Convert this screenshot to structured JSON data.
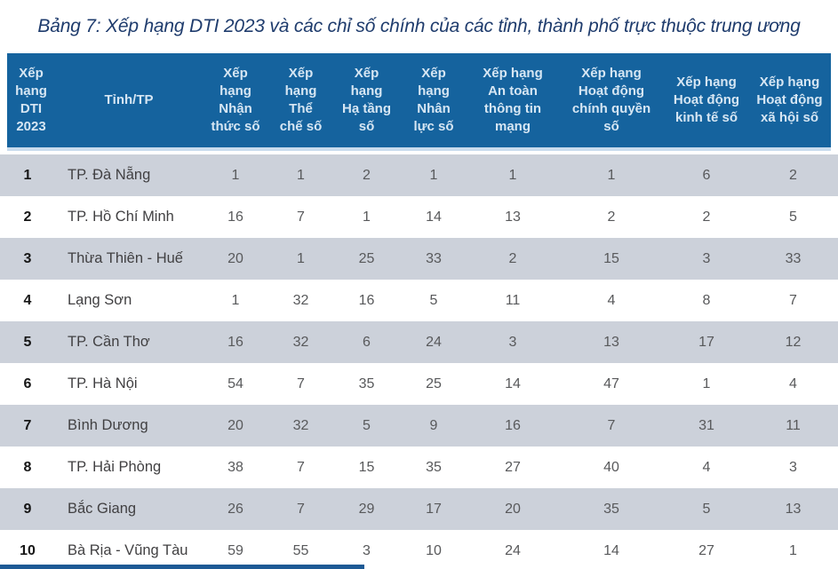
{
  "title": "Bảng 7: Xếp hạng DTI 2023 và các chỉ số chính của các tỉnh, thành phố trực thuộc trung ương",
  "table": {
    "columns": [
      "Xếp hạng DTI 2023",
      "Tỉnh/TP",
      "Xếp hạng Nhận thức số",
      "Xếp hạng Thể chế số",
      "Xếp hạng Hạ tầng số",
      "Xếp hạng Nhân lực số",
      "Xếp hạng An toàn thông tin mạng",
      "Xếp hạng Hoạt động chính quyền số",
      "Xếp hạng Hoạt động kinh tế số",
      "Xếp hạng Hoạt động xã hội số"
    ],
    "rows": [
      {
        "rank": "1",
        "province": "TP. Đà Nẵng",
        "values": [
          "1",
          "1",
          "2",
          "1",
          "1",
          "1",
          "6",
          "2"
        ]
      },
      {
        "rank": "2",
        "province": "TP. Hồ Chí Minh",
        "values": [
          "16",
          "7",
          "1",
          "14",
          "13",
          "2",
          "2",
          "5"
        ]
      },
      {
        "rank": "3",
        "province": "Thừa Thiên - Huế",
        "values": [
          "20",
          "1",
          "25",
          "33",
          "2",
          "15",
          "3",
          "33"
        ]
      },
      {
        "rank": "4",
        "province": "Lạng Sơn",
        "values": [
          "1",
          "32",
          "16",
          "5",
          "11",
          "4",
          "8",
          "7"
        ]
      },
      {
        "rank": "5",
        "province": "TP. Cần Thơ",
        "values": [
          "16",
          "32",
          "6",
          "24",
          "3",
          "13",
          "17",
          "12"
        ]
      },
      {
        "rank": "6",
        "province": "TP. Hà Nội",
        "values": [
          "54",
          "7",
          "35",
          "25",
          "14",
          "47",
          "1",
          "4"
        ]
      },
      {
        "rank": "7",
        "province": "Bình Dương",
        "values": [
          "20",
          "32",
          "5",
          "9",
          "16",
          "7",
          "31",
          "11"
        ]
      },
      {
        "rank": "8",
        "province": "TP. Hải Phòng",
        "values": [
          "38",
          "7",
          "15",
          "35",
          "27",
          "40",
          "4",
          "3"
        ]
      },
      {
        "rank": "9",
        "province": "Bắc Giang",
        "values": [
          "26",
          "7",
          "29",
          "17",
          "20",
          "35",
          "5",
          "13"
        ]
      },
      {
        "rank": "10",
        "province": "Bà Rịa - Vũng Tàu",
        "values": [
          "59",
          "55",
          "3",
          "10",
          "24",
          "14",
          "27",
          "1"
        ]
      }
    ]
  },
  "colors": {
    "header_bg": "#15639e",
    "header_text": "#d6e6f3",
    "row_alt_bg": "#ccd1da",
    "row_bg": "#ffffff",
    "title_color": "#1f3c6d",
    "footer_bar": "#1d5a95"
  }
}
